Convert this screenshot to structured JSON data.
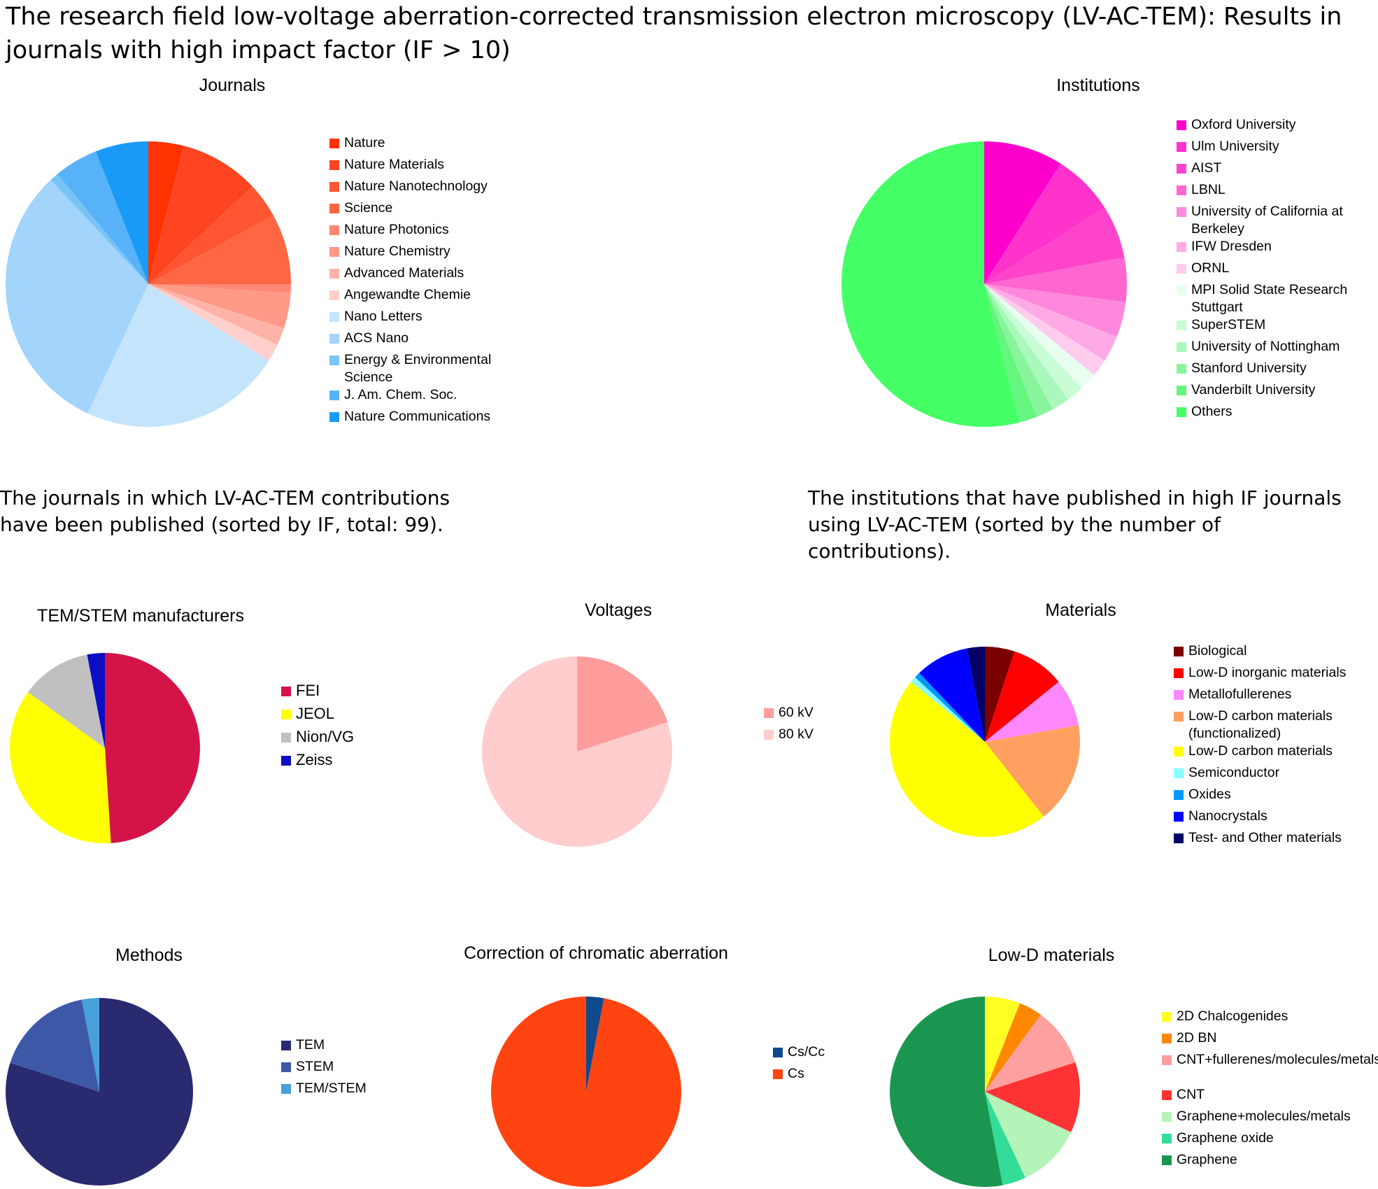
{
  "title": "The research field low-voltage aberration-corrected transmission electron microscopy (LV-AC-TEM): Results in journals with high impact factor (IF > 10)",
  "captions": {
    "journals": "The journals in which LV-AC-TEM contributions have been published (sorted by IF, total: 99).",
    "institutions": "The institutions that have published in high IF journals using LV-AC-TEM (sorted by the number of contributions)."
  },
  "chart_data": [
    {
      "id": "journals",
      "type": "pie",
      "title": "Journals",
      "labels": [
        "Nature",
        "Nature Materials",
        "Nature Nanotechnology",
        "Science",
        "Nature Photonics",
        "Nature Chemistry",
        "Advanced Materials",
        "Angewandte Chemie",
        "Nano Letters",
        "ACS Nano",
        "Energy & Environmental Science",
        "J. Am. Chem. Soc.",
        "Nature Communications"
      ],
      "values": [
        4,
        9,
        4,
        8,
        1,
        4,
        2,
        2,
        23,
        31,
        1,
        5,
        6
      ],
      "colors": [
        "#ff3300",
        "#ff4422",
        "#ff5533",
        "#ff6644",
        "#ff8877",
        "#ff9988",
        "#ffb3a8",
        "#ffd0cb",
        "#c4e4fb",
        "#a2d4fc",
        "#78c4f7",
        "#58b2f7",
        "#1a9af7"
      ]
    },
    {
      "id": "institutions",
      "type": "pie",
      "title": "Institutions",
      "labels": [
        "Oxford University",
        "Ulm University",
        "AIST",
        "LBNL",
        "University of California at Berkeley",
        "IFW Dresden",
        "ORNL",
        "MPI Solid State Research Stuttgart",
        "SuperSTEM",
        "University of Nottingham",
        "Stanford University",
        "Vanderbilt University",
        "Others"
      ],
      "values": [
        9,
        7,
        6,
        5,
        4,
        3,
        2,
        2,
        2,
        2,
        2,
        2,
        54
      ],
      "colors": [
        "#ff00cc",
        "#ff33cc",
        "#ff44cc",
        "#ff66d0",
        "#ff88dd",
        "#ffaae6",
        "#ffccee",
        "#e8fff0",
        "#c8fdd6",
        "#aaf8bb",
        "#88f59c",
        "#66f57e",
        "#44ff66"
      ]
    },
    {
      "id": "manufacturers",
      "type": "pie",
      "title": "TEM/STEM manufacturers",
      "labels": [
        "FEI",
        "JEOL",
        "Nion/VG",
        "Zeiss"
      ],
      "values": [
        49,
        36,
        12,
        3
      ],
      "colors": [
        "#d41448",
        "#ffff00",
        "#c0c0c0",
        "#0d0dc4"
      ]
    },
    {
      "id": "voltages",
      "type": "pie",
      "title": "Voltages",
      "labels": [
        "60 kV",
        "80 kV"
      ],
      "values": [
        20,
        80
      ],
      "colors": [
        "#ff9c9c",
        "#ffcdcd"
      ]
    },
    {
      "id": "materials",
      "type": "pie",
      "title": "Materials",
      "labels": [
        "Biological",
        "Low-D inorganic materials",
        "Metallofullerenes",
        "Low-D carbon materials (functionalized)",
        "Low-D carbon materials",
        "Semiconductor",
        "Oxides",
        "Nanocrystals",
        "Test- and Other materials"
      ],
      "values": [
        5,
        9,
        8,
        17,
        46,
        1,
        1,
        9,
        3
      ],
      "colors": [
        "#7a0000",
        "#ff0000",
        "#ff88ff",
        "#ffa060",
        "#ffff00",
        "#88ffff",
        "#0099ff",
        "#0000ff",
        "#000066"
      ]
    },
    {
      "id": "methods",
      "type": "pie",
      "title": "Methods",
      "labels": [
        "TEM",
        "STEM",
        "TEM/STEM"
      ],
      "values": [
        80,
        17,
        3
      ],
      "colors": [
        "#2a2a70",
        "#3e58a8",
        "#48a0d8"
      ]
    },
    {
      "id": "chromatic",
      "type": "pie",
      "title": "Correction of chromatic aberration",
      "labels": [
        "Cs/Cc",
        "Cs"
      ],
      "values": [
        3,
        97
      ],
      "colors": [
        "#0e4a8c",
        "#ff4411"
      ]
    },
    {
      "id": "lowd",
      "type": "pie",
      "title": "Low-D materials",
      "labels": [
        "2D Chalcogenides",
        "2D BN",
        "CNT+fullerenes/molecules/metals",
        "CNT",
        "Graphene+molecules/metals",
        "Graphene oxide",
        "Graphene"
      ],
      "values": [
        6,
        4,
        10,
        12,
        11,
        4,
        53
      ],
      "colors": [
        "#ffff22",
        "#ff8800",
        "#ffa0a0",
        "#ff3333",
        "#b4f4b8",
        "#33dd99",
        "#1a9650"
      ]
    }
  ]
}
